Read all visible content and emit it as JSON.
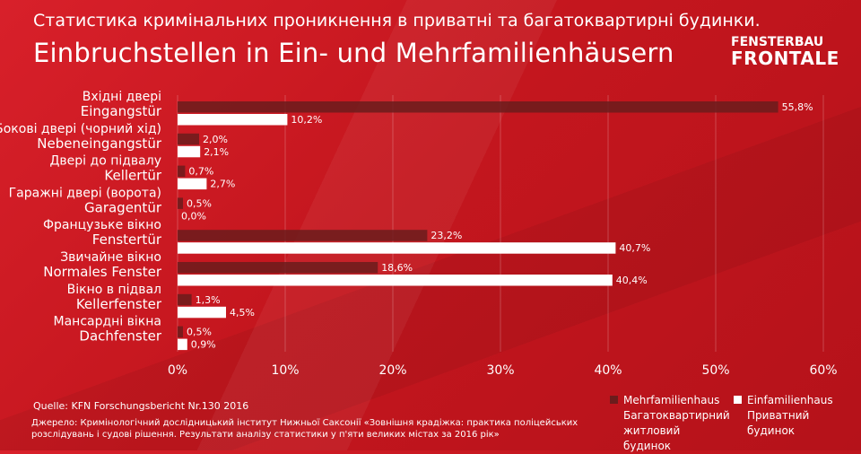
{
  "header": {
    "title_uk": "Статистика кримінальних проникнення в приватні та багатоквартирні будинки.",
    "title_de": "Einbruchstellen in Ein- und Mehrfamilienhäusern"
  },
  "logo": {
    "line1": "FENSTERBAU",
    "line2": "FRONTALE"
  },
  "colors": {
    "multi": "#6b1c1c",
    "single": "#ffffff",
    "background": "#c4161e"
  },
  "chart_data": {
    "type": "bar",
    "orientation": "horizontal",
    "categories": [
      {
        "uk": "Вхідні двері",
        "de": "Eingangstür"
      },
      {
        "uk": "Бокові двері (чорний хід)",
        "de": "Nebeneingangstür"
      },
      {
        "uk": "Двері до підвалу",
        "de": "Kellertür"
      },
      {
        "uk": "Гаражні двері (ворота)",
        "de": "Garagentür"
      },
      {
        "uk": "Французьке вікно",
        "de": "Fenstertür"
      },
      {
        "uk": "Звичайне вікно",
        "de": "Normales Fenster"
      },
      {
        "uk": "Вікно в підвал",
        "de": "Kellerfenster"
      },
      {
        "uk": "Мансардні вікна",
        "de": "Dachfenster"
      }
    ],
    "series": [
      {
        "name": "Mehrfamilienhaus",
        "name_uk": "Багатоквартирний житловий будинок",
        "color": "#6b1c1c",
        "values": [
          55.8,
          2.0,
          0.7,
          0.5,
          23.2,
          18.6,
          1.3,
          0.5
        ],
        "labels": [
          "55,8%",
          "2,0%",
          "0,7%",
          "0,5%",
          "23,2%",
          "18,6%",
          "1,3%",
          "0,5%"
        ]
      },
      {
        "name": "Einfamilienhaus",
        "name_uk": "Приватний будинок",
        "color": "#ffffff",
        "values": [
          10.2,
          2.1,
          2.7,
          0.0,
          40.7,
          40.4,
          4.5,
          0.9
        ],
        "labels": [
          "10,2%",
          "2,1%",
          "2,7%",
          "0,0%",
          "40,7%",
          "40,4%",
          "4,5%",
          "0,9%"
        ]
      }
    ],
    "xlim": [
      0,
      60
    ],
    "x_ticks": [
      0,
      10,
      20,
      30,
      40,
      50,
      60
    ],
    "x_tick_labels": [
      "0%",
      "10%",
      "20%",
      "30%",
      "40%",
      "50%",
      "60%"
    ],
    "grid": true,
    "legend_position": "bottom-right"
  },
  "legend": [
    {
      "de": "Mehrfamilienhaus",
      "uk": "Багатоквартирний житловий будинок"
    },
    {
      "de": "Einfamilienhaus",
      "uk": "Приватний будинок"
    }
  ],
  "source": {
    "de": "Quelle: KFN Forschungsbericht Nr.130 2016",
    "uk": "Джерело:  Кримінологічний дослідницький інститут Нижньої Саксонії «Зовнішня крадіжка: практика поліцейських розслідувань і судові рішення. Результати аналізу статистики у п'яти великих містах за 2016 рік»"
  }
}
